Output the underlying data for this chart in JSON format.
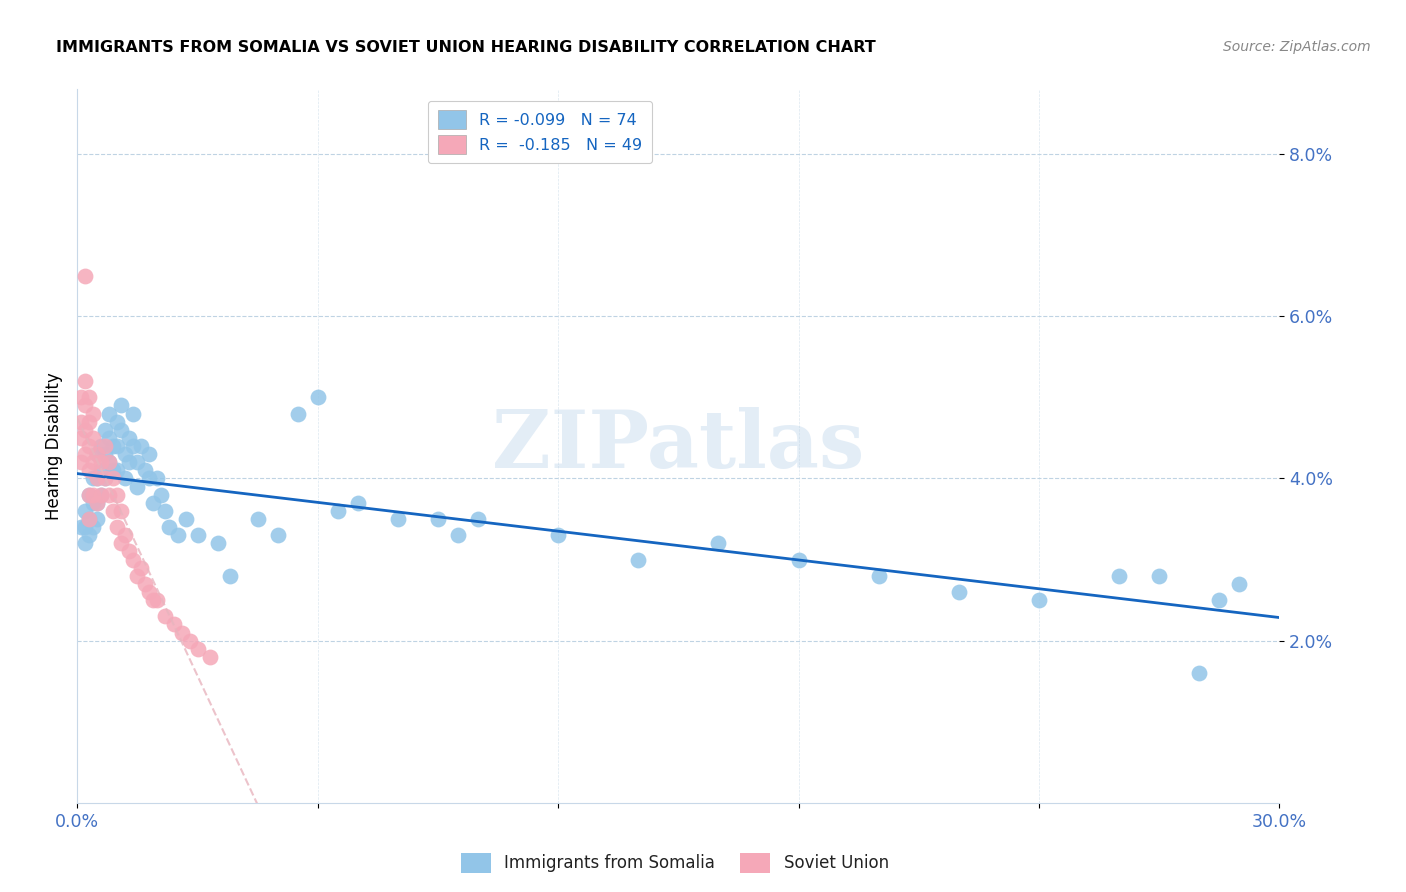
{
  "title": "IMMIGRANTS FROM SOMALIA VS SOVIET UNION HEARING DISABILITY CORRELATION CHART",
  "source": "Source: ZipAtlas.com",
  "ylabel": "Hearing Disability",
  "ytick_labels": [
    "8.0%",
    "6.0%",
    "4.0%",
    "2.0%"
  ],
  "ytick_values": [
    0.08,
    0.06,
    0.04,
    0.02
  ],
  "xlim": [
    0.0,
    0.3
  ],
  "ylim": [
    0.0,
    0.088
  ],
  "somalia_color": "#92c5e8",
  "soviet_color": "#f5a8b8",
  "somalia_line_color": "#1565c0",
  "soviet_line_color": "#e8b4be",
  "watermark_text": "ZIPatlas",
  "legend_entries": [
    "R = -0.099   N = 74",
    "R =  -0.185   N = 49"
  ],
  "bottom_legend": [
    "Immigrants from Somalia",
    "Soviet Union"
  ],
  "somalia_x": [
    0.001,
    0.002,
    0.002,
    0.002,
    0.003,
    0.003,
    0.003,
    0.004,
    0.004,
    0.004,
    0.005,
    0.005,
    0.005,
    0.005,
    0.006,
    0.006,
    0.006,
    0.007,
    0.007,
    0.007,
    0.008,
    0.008,
    0.008,
    0.009,
    0.009,
    0.01,
    0.01,
    0.01,
    0.011,
    0.011,
    0.012,
    0.012,
    0.013,
    0.013,
    0.014,
    0.014,
    0.015,
    0.015,
    0.016,
    0.017,
    0.018,
    0.018,
    0.019,
    0.02,
    0.021,
    0.022,
    0.023,
    0.025,
    0.027,
    0.03,
    0.035,
    0.038,
    0.045,
    0.05,
    0.055,
    0.06,
    0.065,
    0.07,
    0.08,
    0.09,
    0.095,
    0.1,
    0.12,
    0.14,
    0.16,
    0.18,
    0.2,
    0.22,
    0.24,
    0.26,
    0.27,
    0.28,
    0.285,
    0.29
  ],
  "somalia_y": [
    0.034,
    0.036,
    0.034,
    0.032,
    0.038,
    0.035,
    0.033,
    0.04,
    0.037,
    0.034,
    0.043,
    0.04,
    0.037,
    0.035,
    0.044,
    0.041,
    0.038,
    0.046,
    0.043,
    0.04,
    0.048,
    0.045,
    0.042,
    0.044,
    0.041,
    0.047,
    0.044,
    0.041,
    0.049,
    0.046,
    0.043,
    0.04,
    0.045,
    0.042,
    0.048,
    0.044,
    0.042,
    0.039,
    0.044,
    0.041,
    0.043,
    0.04,
    0.037,
    0.04,
    0.038,
    0.036,
    0.034,
    0.033,
    0.035,
    0.033,
    0.032,
    0.028,
    0.035,
    0.033,
    0.048,
    0.05,
    0.036,
    0.037,
    0.035,
    0.035,
    0.033,
    0.035,
    0.033,
    0.03,
    0.032,
    0.03,
    0.028,
    0.026,
    0.025,
    0.028,
    0.028,
    0.016,
    0.025,
    0.027
  ],
  "soviet_x": [
    0.001,
    0.001,
    0.001,
    0.001,
    0.002,
    0.002,
    0.002,
    0.002,
    0.003,
    0.003,
    0.003,
    0.003,
    0.003,
    0.003,
    0.004,
    0.004,
    0.004,
    0.004,
    0.005,
    0.005,
    0.005,
    0.006,
    0.006,
    0.007,
    0.007,
    0.008,
    0.008,
    0.009,
    0.009,
    0.01,
    0.01,
    0.011,
    0.011,
    0.012,
    0.013,
    0.014,
    0.015,
    0.016,
    0.017,
    0.018,
    0.019,
    0.02,
    0.022,
    0.024,
    0.026,
    0.028,
    0.03,
    0.033,
    0.002
  ],
  "soviet_y": [
    0.05,
    0.047,
    0.045,
    0.042,
    0.052,
    0.049,
    0.046,
    0.043,
    0.05,
    0.047,
    0.044,
    0.041,
    0.038,
    0.035,
    0.048,
    0.045,
    0.042,
    0.038,
    0.043,
    0.04,
    0.037,
    0.042,
    0.038,
    0.044,
    0.04,
    0.042,
    0.038,
    0.04,
    0.036,
    0.038,
    0.034,
    0.036,
    0.032,
    0.033,
    0.031,
    0.03,
    0.028,
    0.029,
    0.027,
    0.026,
    0.025,
    0.025,
    0.023,
    0.022,
    0.021,
    0.02,
    0.019,
    0.018,
    0.065
  ]
}
